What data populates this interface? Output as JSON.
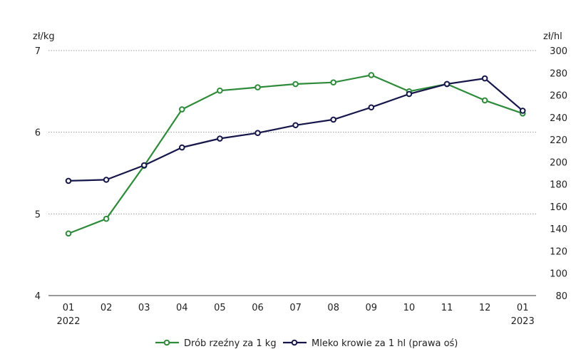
{
  "chart_data": {
    "type": "line",
    "title": "",
    "left_unit": "zł/kg",
    "right_unit": "zł/hl",
    "x_labels": [
      "01",
      "02",
      "03",
      "04",
      "05",
      "06",
      "07",
      "08",
      "09",
      "10",
      "11",
      "12",
      "01"
    ],
    "year_labels": [
      {
        "index": 0,
        "text": "2022"
      },
      {
        "index": 12,
        "text": "2023"
      }
    ],
    "left_axis": {
      "min": 4,
      "max": 7,
      "ticks": [
        4,
        5,
        6,
        7
      ]
    },
    "right_axis": {
      "min": 80,
      "max": 300,
      "ticks": [
        80,
        100,
        120,
        140,
        160,
        180,
        200,
        220,
        240,
        260,
        280,
        300
      ]
    },
    "grid": true,
    "legend_position": "bottom",
    "series": [
      {
        "name": "Drób rzeźny za 1 kg",
        "axis": "left",
        "color": "#2e8b3a",
        "values": [
          4.76,
          4.94,
          5.59,
          6.28,
          6.51,
          6.55,
          6.59,
          6.61,
          6.7,
          6.5,
          6.59,
          6.39,
          6.23
        ]
      },
      {
        "name": "Mleko krowie za 1 hl (prawa oś)",
        "axis": "right",
        "color": "#16164a",
        "values": [
          183,
          184,
          197,
          213,
          221,
          226,
          233,
          238,
          249,
          261,
          270,
          275,
          246
        ]
      }
    ]
  }
}
